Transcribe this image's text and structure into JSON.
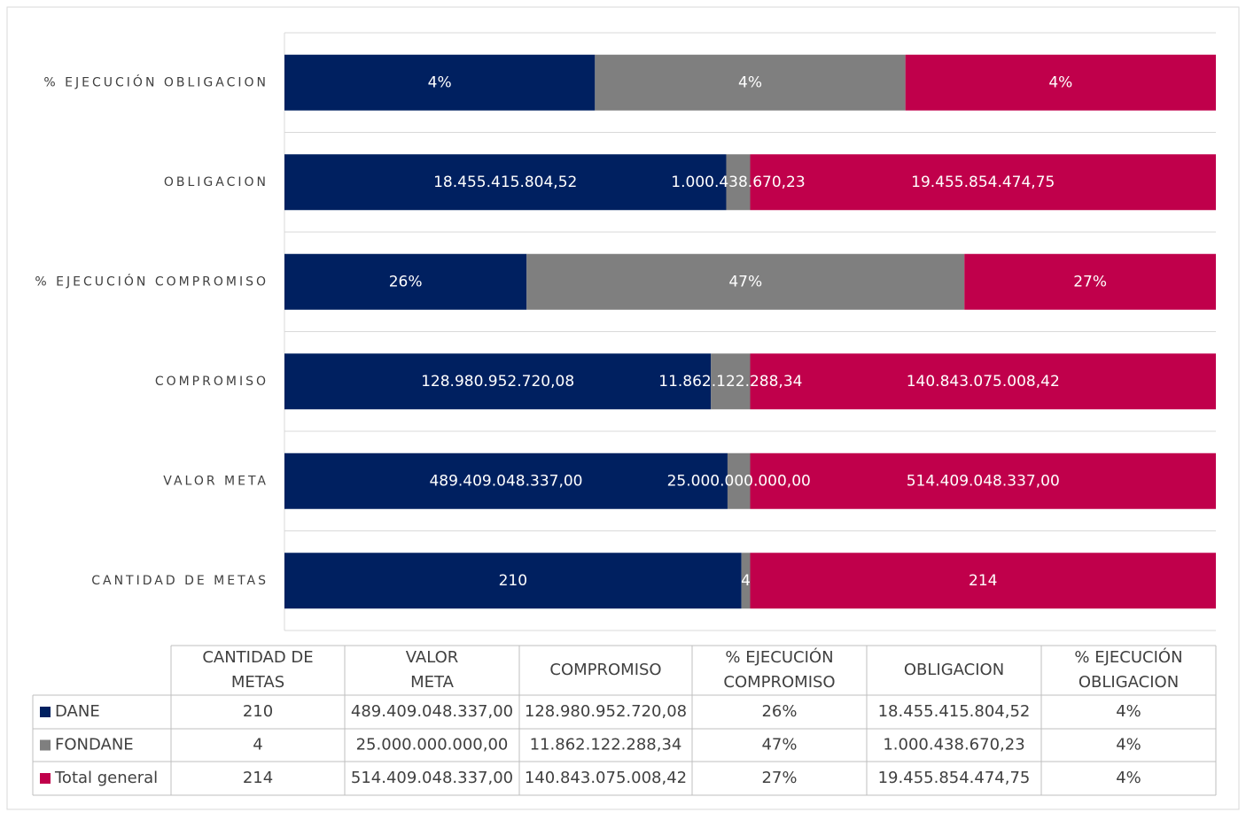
{
  "chart_data": {
    "type": "bar",
    "orientation": "horizontal",
    "stacking": "percent",
    "categories": [
      "CANTIDAD DE METAS",
      "VALOR META",
      "COMPROMISO",
      "% EJECUCIÓN COMPROMISO",
      "OBLIGACION",
      "% EJECUCIÓN OBLIGACION"
    ],
    "series": [
      {
        "name": "DANE",
        "color": "#002060",
        "values": [
          210,
          489409048337.0,
          128980952720.08,
          26,
          18455415804.52,
          4
        ],
        "value_labels": [
          "210",
          "489.409.048.337,00",
          "128.980.952.720,08",
          "26%",
          "18.455.415.804,52",
          "4%"
        ]
      },
      {
        "name": "FONDANE",
        "color": "#7f7f7f",
        "values": [
          4,
          25000000000.0,
          11862122288.34,
          47,
          1000438670.23,
          4
        ],
        "value_labels": [
          "4",
          "25.000.000.000,00",
          "11.862.122.288,34",
          "47%",
          "1.000.438.670,23",
          "4%"
        ]
      },
      {
        "name": "Total general",
        "color": "#c0004b",
        "values": [
          214,
          514409048337.0,
          140843075008.42,
          27,
          19455854474.75,
          4
        ],
        "value_labels": [
          "214",
          "514.409.048.337,00",
          "140.843.075.008,42",
          "27%",
          "19.455.854.474,75",
          "4%"
        ]
      }
    ],
    "grid": true,
    "data_table": true
  }
}
